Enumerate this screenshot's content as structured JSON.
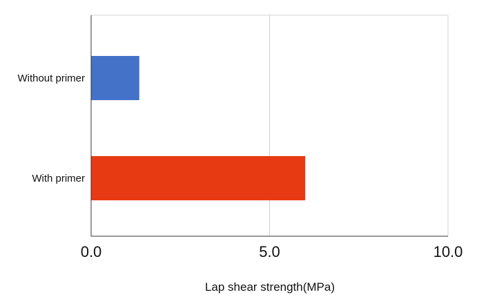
{
  "chart_data": {
    "type": "bar",
    "orientation": "horizontal",
    "categories": [
      "Without primer",
      "With primer"
    ],
    "values": [
      1.35,
      6.0
    ],
    "bar_colors": [
      "#4472C8",
      "#E83A12"
    ],
    "title": "",
    "xlabel": "Lap shear strength(MPa)",
    "ylabel": "",
    "xlim": [
      0,
      10
    ],
    "xticks": [
      0,
      5,
      10
    ],
    "xtick_labels": [
      "0.0",
      "5.0",
      "10.0"
    ],
    "grid": "vertical",
    "legend": "none"
  }
}
